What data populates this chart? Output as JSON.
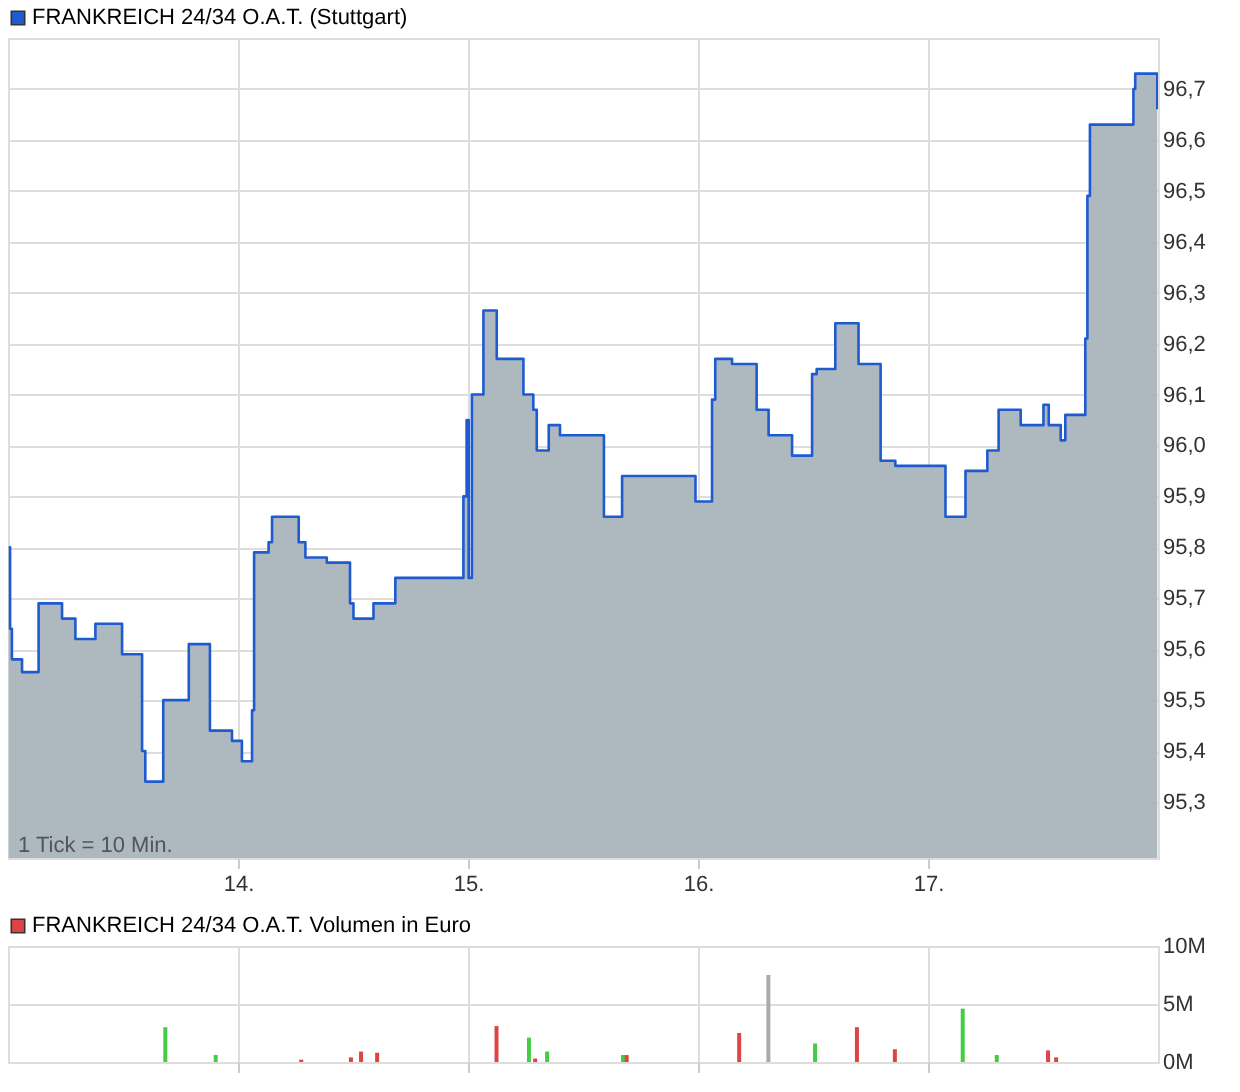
{
  "chart_data": [
    {
      "type": "step",
      "series": [
        {
          "name": "FRANKREICH 24/34 O.A.T. (Stuttgart)",
          "color": "#1f5bd0",
          "x": [
            13.003,
            13.009,
            13.017,
            13.061,
            13.133,
            13.235,
            13.293,
            13.38,
            13.496,
            13.583,
            13.597,
            13.675,
            13.786,
            13.878,
            13.974,
            14.017,
            14.061,
            14.07,
            14.133,
            14.148,
            14.264,
            14.293,
            14.386,
            14.487,
            14.502,
            14.589,
            14.684,
            14.98,
            14.994,
            15.003,
            15.017,
            15.067,
            15.125,
            15.241,
            15.284,
            15.299,
            15.351,
            15.4,
            15.591,
            15.67,
            15.989,
            16.061,
            16.075,
            16.148,
            16.255,
            16.307,
            16.409,
            16.496,
            16.516,
            16.597,
            16.698,
            16.794,
            16.858,
            17.076,
            17.163,
            17.258,
            17.307,
            17.403,
            17.502,
            17.525,
            17.577,
            17.597,
            17.684,
            17.693,
            17.704,
            17.893,
            17.901,
            17.997
          ],
          "values": [
            95.8,
            95.64,
            95.58,
            95.555,
            95.69,
            95.66,
            95.62,
            95.65,
            95.59,
            95.4,
            95.34,
            95.5,
            95.61,
            95.44,
            95.42,
            95.38,
            95.48,
            95.79,
            95.81,
            95.86,
            95.81,
            95.78,
            95.77,
            95.69,
            95.66,
            95.69,
            95.74,
            95.9,
            96.05,
            95.74,
            96.1,
            96.265,
            96.17,
            96.1,
            96.07,
            95.99,
            96.04,
            96.02,
            95.86,
            95.94,
            95.89,
            96.09,
            96.17,
            96.16,
            96.07,
            96.02,
            95.98,
            96.14,
            96.15,
            96.24,
            96.16,
            95.97,
            95.96,
            95.86,
            95.95,
            95.99,
            96.07,
            96.04,
            96.08,
            96.04,
            96.01,
            96.06,
            96.21,
            96.49,
            96.63,
            96.7,
            96.73,
            96.66
          ]
        }
      ],
      "xlim": [
        13,
        18
      ],
      "xticks": [
        {
          "value": 14,
          "label": "14."
        },
        {
          "value": 15,
          "label": "15."
        },
        {
          "value": 16,
          "label": "16."
        },
        {
          "value": 17,
          "label": "17."
        }
      ],
      "ylim": [
        95.19,
        96.8
      ],
      "yticks": [
        {
          "value": 95.3,
          "label": "95,3"
        },
        {
          "value": 95.4,
          "label": "95,4"
        },
        {
          "value": 95.5,
          "label": "95,5"
        },
        {
          "value": 95.6,
          "label": "95,6"
        },
        {
          "value": 95.7,
          "label": "95,7"
        },
        {
          "value": 95.8,
          "label": "95,8"
        },
        {
          "value": 95.9,
          "label": "95,9"
        },
        {
          "value": 96.0,
          "label": "96,0"
        },
        {
          "value": 96.1,
          "label": "96,1"
        },
        {
          "value": 96.2,
          "label": "96,2"
        },
        {
          "value": 96.3,
          "label": "96,3"
        },
        {
          "value": 96.4,
          "label": "96,4"
        },
        {
          "value": 96.5,
          "label": "96,5"
        },
        {
          "value": 96.6,
          "label": "96,6"
        },
        {
          "value": 96.7,
          "label": "96,7"
        }
      ],
      "grid": true,
      "legend": "top left",
      "annotations": [
        "1 Tick = 10 Min."
      ]
    },
    {
      "type": "bar",
      "series": [
        {
          "name": "FRANKREICH 24/34 O.A.T. Volumen in Euro",
          "color": "#dd4444",
          "x": [
            13.684,
            13.903,
            14.275,
            14.491,
            14.535,
            14.605,
            15.124,
            15.265,
            15.292,
            15.344,
            15.674,
            15.69,
            16.179,
            16.306,
            16.509,
            16.691,
            16.856,
            17.151,
            17.299,
            17.522,
            17.557
          ],
          "values": [
            3.0,
            0.6,
            0.2,
            0.4,
            0.9,
            0.8,
            3.1,
            2.1,
            0.3,
            0.9,
            0.6,
            0.6,
            2.5,
            7.5,
            1.6,
            3.0,
            1.1,
            4.6,
            0.6,
            1.0,
            0.4
          ],
          "colors": [
            "#44cc44",
            "#44cc44",
            "#dd4444",
            "#dd4444",
            "#dd4444",
            "#dd4444",
            "#dd4444",
            "#44cc44",
            "#dd4444",
            "#44cc44",
            "#44cc44",
            "#dd4444",
            "#dd4444",
            "#aaaaaa",
            "#44cc44",
            "#dd4444",
            "#dd4444",
            "#44cc44",
            "#44cc44",
            "#dd4444",
            "#dd4444"
          ]
        }
      ],
      "xlim": [
        13,
        18
      ],
      "xticks": [
        {
          "value": 14,
          "label": null
        },
        {
          "value": 15,
          "label": null
        },
        {
          "value": 16,
          "label": null
        },
        {
          "value": 17,
          "label": null
        }
      ],
      "ylim": [
        0,
        10
      ],
      "yticks": [
        {
          "value": 0,
          "label": "0M"
        },
        {
          "value": 5,
          "label": "5M"
        },
        {
          "value": 10,
          "label": "10M"
        }
      ],
      "grid": true,
      "legend": "top left",
      "tick_labels": "y"
    }
  ]
}
